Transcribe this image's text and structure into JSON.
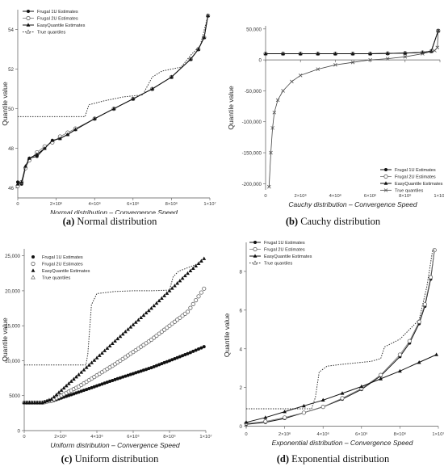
{
  "chart_data": [
    {
      "type": "line",
      "id": "a",
      "ylabel": "Quantile value",
      "xlabel": "Normal distribution –  Convergence Speed",
      "caption_letter": "(a)",
      "caption_text": "Normal distribution",
      "xlim": [
        0,
        10000000
      ],
      "ylim": [
        45.5,
        55
      ],
      "y_ticks": [
        46,
        48,
        50,
        52,
        54
      ],
      "x_ticks": [
        0,
        2000000,
        4000000,
        6000000,
        8000000,
        10000000
      ],
      "x_tick_labels": [
        "0",
        "2×10⁶",
        "4×10⁶",
        "6×10⁶",
        "8×10⁶",
        "1×10⁷"
      ],
      "y_tick_labels": [
        "46",
        "48",
        "50",
        "52",
        "54"
      ],
      "legend": "top-left",
      "grid": false,
      "series": [
        {
          "name": "Frugal 1U Estimates",
          "style": "filled-circle",
          "x": [
            0,
            200000,
            400000,
            600000,
            1000000,
            1400000,
            1800000,
            2200000,
            2600000,
            3000000,
            4000000,
            5000000,
            6000000,
            7000000,
            8000000,
            9000000,
            9400000,
            9700000,
            9900000
          ],
          "y": [
            46.3,
            46.2,
            47.0,
            47.5,
            47.6,
            48.0,
            48.4,
            48.5,
            48.7,
            48.95,
            49.5,
            50.0,
            50.5,
            51.0,
            51.6,
            52.5,
            53.0,
            53.6,
            54.7
          ]
        },
        {
          "name": "Frugal 2U Estimates",
          "style": "open-circle",
          "x": [
            0,
            200000,
            400000,
            600000,
            1000000,
            1400000,
            1800000,
            2200000,
            2600000,
            3000000,
            4000000,
            5000000,
            6000000,
            7000000,
            8000000,
            9000000,
            9400000,
            9700000,
            9900000
          ],
          "y": [
            46.1,
            46.3,
            47.0,
            47.4,
            47.8,
            48.1,
            48.3,
            48.6,
            48.8,
            49.0,
            49.5,
            50.0,
            50.5,
            51.0,
            51.6,
            52.5,
            53.0,
            53.6,
            54.7
          ]
        },
        {
          "name": "EasyQuantile Estimates",
          "style": "filled-triangle",
          "x": [
            0,
            200000,
            400000,
            600000,
            1000000,
            1400000,
            1800000,
            2200000,
            2600000,
            3000000,
            4000000,
            5000000,
            6000000,
            7000000,
            8000000,
            9000000,
            9400000,
            9700000,
            9900000
          ],
          "y": [
            46.2,
            46.3,
            47.1,
            47.5,
            47.7,
            48.0,
            48.4,
            48.5,
            48.7,
            48.95,
            49.5,
            50.0,
            50.5,
            51.0,
            51.6,
            52.5,
            53.0,
            53.6,
            54.7
          ]
        },
        {
          "name": "True quantiles",
          "style": "dotted",
          "x": [
            0,
            3500000,
            3700000,
            4500000,
            5500000,
            6500000,
            7000000,
            7500000,
            8500000,
            9000000,
            9500000,
            9900000
          ],
          "y": [
            49.6,
            49.6,
            50.2,
            50.4,
            50.6,
            50.7,
            51.6,
            51.9,
            52.1,
            52.7,
            53.2,
            54.7
          ]
        }
      ]
    },
    {
      "type": "line",
      "id": "b",
      "ylabel": "Quantile value",
      "xlabel": "Cauchy distribution –  Convergence Speed",
      "caption_letter": "(b)",
      "caption_text": "Cauchy distribution",
      "xlim": [
        0,
        10000000
      ],
      "ylim": [
        -210000,
        55000
      ],
      "y_ticks": [
        -200000,
        -150000,
        -100000,
        -50000,
        0,
        50000
      ],
      "y_tick_labels": [
        "-200,000",
        "-150,000",
        "-100,000",
        "-50,000",
        "0",
        "50,000"
      ],
      "x_ticks": [
        0,
        2000000,
        4000000,
        6000000,
        8000000,
        10000000
      ],
      "x_tick_labels": [
        "0",
        "2×10⁶",
        "4×10⁶",
        "6×10⁶",
        "8×10⁶",
        "1×10⁷"
      ],
      "legend": "bottom-right",
      "grid": false,
      "series": [
        {
          "name": "Frugal 1U Estimates",
          "style": "filled-circle",
          "x": [
            0,
            1000000,
            2000000,
            3000000,
            4000000,
            5000000,
            6000000,
            7000000,
            8000000,
            9000000,
            9500000,
            9900000
          ],
          "y": [
            10000,
            10000,
            10000,
            10000,
            10000,
            10000,
            10000,
            10500,
            11000,
            12000,
            14000,
            47000
          ]
        },
        {
          "name": "Frugal 2U Estimates",
          "style": "open-circle",
          "x": [
            0,
            1000000,
            2000000,
            3000000,
            4000000,
            5000000,
            6000000,
            7000000,
            8000000,
            9000000,
            9500000,
            9900000
          ],
          "y": [
            10000,
            10000,
            10000,
            10000,
            10000,
            10000,
            10000,
            10500,
            11000,
            12000,
            14000,
            47000
          ]
        },
        {
          "name": "EasyQuantile Estimates",
          "style": "filled-triangle",
          "x": [
            0,
            1000000,
            2000000,
            3000000,
            4000000,
            5000000,
            6000000,
            7000000,
            8000000,
            9000000,
            9500000,
            9900000
          ],
          "y": [
            10000,
            10000,
            10000,
            10000,
            10000,
            10000,
            10000,
            10500,
            11000,
            12000,
            14000,
            47000
          ]
        },
        {
          "name": "True quantiles",
          "style": "line-cross",
          "x": [
            200000,
            300000,
            400000,
            500000,
            700000,
            1000000,
            1500000,
            2000000,
            3000000,
            4000000,
            5000000,
            6000000,
            7000000,
            8000000,
            9000000,
            9700000,
            9850000,
            9900000
          ],
          "y": [
            -205000,
            -150000,
            -110000,
            -85000,
            -65000,
            -50000,
            -35000,
            -25000,
            -15000,
            -8000,
            -4000,
            0,
            2000,
            5000,
            10000,
            15000,
            20000,
            47000
          ]
        }
      ]
    },
    {
      "type": "scatter",
      "id": "c",
      "ylabel": "Quantile value",
      "xlabel": "Uniform distribution –  Convergence Speed",
      "caption_letter": "(c)",
      "caption_text": "Uniform distribution",
      "xlim": [
        0,
        10000000
      ],
      "ylim": [
        0,
        26000
      ],
      "y_ticks": [
        0,
        5000,
        10000,
        15000,
        20000,
        25000
      ],
      "y_tick_labels": [
        "0",
        "5000",
        "10,000",
        "15,000",
        "20,000",
        "25,000"
      ],
      "x_ticks": [
        0,
        2000000,
        4000000,
        6000000,
        8000000,
        10000000
      ],
      "x_tick_labels": [
        "0",
        "2×10⁶",
        "4×10⁶",
        "6×10⁶",
        "8×10⁶",
        "1×10⁷"
      ],
      "legend": "top-left",
      "grid": false,
      "series": [
        {
          "name": "Frugal 1U Estimates",
          "style": "filled-circle",
          "x": [
            0,
            1000000,
            1500000,
            3000000,
            5000000,
            7000000,
            9000000,
            9900000
          ],
          "y": [
            4000,
            4000,
            4200,
            5500,
            7300,
            9000,
            11000,
            12000
          ]
        },
        {
          "name": "Frugal 2U Estimates",
          "style": "open-circle",
          "x": [
            0,
            1000000,
            1500000,
            3000000,
            5000000,
            7000000,
            9000000,
            9900000
          ],
          "y": [
            4000,
            4000,
            4300,
            6300,
            9500,
            13000,
            17000,
            20300
          ]
        },
        {
          "name": "EasyQuantile Estimates",
          "style": "filled-triangle",
          "x": [
            0,
            1000000,
            1500000,
            3000000,
            5000000,
            7000000,
            9000000,
            9900000
          ],
          "y": [
            4000,
            4000,
            4500,
            8000,
            12800,
            17500,
            22500,
            24600
          ]
        },
        {
          "name": "True quantiles",
          "style": "dotted",
          "x": [
            0,
            3400000,
            3500000,
            3700000,
            4000000,
            5000000,
            6000000,
            7000000,
            8000000,
            8200000,
            8500000,
            9000000,
            9500000,
            9900000
          ],
          "y": [
            9400,
            9400,
            11000,
            18000,
            19600,
            19900,
            20000,
            20000,
            20100,
            22000,
            22800,
            23300,
            23800,
            24600
          ]
        }
      ]
    },
    {
      "type": "line",
      "id": "d",
      "ylabel": "Quantile value",
      "xlabel": "Exponential distribution –  Convergence Speed",
      "caption_letter": "(d)",
      "caption_text": "Exponential distribution",
      "xlim": [
        0,
        10000000
      ],
      "ylim": [
        -0.1,
        9.5
      ],
      "y_ticks": [
        0,
        2,
        4,
        6,
        8
      ],
      "y_tick_labels": [
        "0",
        "2",
        "4",
        "6",
        "8"
      ],
      "x_ticks": [
        0,
        2000000,
        4000000,
        6000000,
        8000000,
        10000000
      ],
      "x_tick_labels": [
        "0",
        "2×10⁶",
        "4×10⁶",
        "6×10⁶",
        "8×10⁶",
        "1×10⁷"
      ],
      "legend": "top-left",
      "grid": false,
      "series": [
        {
          "name": "Frugal 1U Estimates",
          "style": "filled-circle",
          "x": [
            0,
            1000000,
            2000000,
            3000000,
            4000000,
            5000000,
            6000000,
            7000000,
            8000000,
            8500000,
            9000000,
            9300000,
            9600000,
            9800000
          ],
          "y": [
            0.1,
            0.2,
            0.4,
            0.7,
            1.0,
            1.4,
            1.9,
            2.6,
            3.6,
            4.3,
            5.3,
            6.2,
            7.6,
            9.1
          ]
        },
        {
          "name": "Frugal 2U Estimates",
          "style": "open-circle",
          "x": [
            0,
            1000000,
            2000000,
            3000000,
            4000000,
            5000000,
            6000000,
            7000000,
            8000000,
            8500000,
            9000000,
            9300000,
            9600000,
            9800000
          ],
          "y": [
            0.15,
            0.25,
            0.45,
            0.7,
            1.0,
            1.45,
            1.95,
            2.65,
            3.7,
            4.4,
            5.4,
            6.3,
            7.7,
            9.1
          ]
        },
        {
          "name": "EasyQuantile Estimates",
          "style": "filled-triangle",
          "x": [
            0,
            1000000,
            2000000,
            3000000,
            4000000,
            5000000,
            6000000,
            7000000,
            8000000,
            9000000,
            9900000
          ],
          "y": [
            0.2,
            0.45,
            0.75,
            1.05,
            1.35,
            1.7,
            2.05,
            2.45,
            2.85,
            3.3,
            3.7
          ]
        },
        {
          "name": "True quantiles",
          "style": "dotted",
          "x": [
            0,
            3400000,
            3600000,
            3800000,
            4200000,
            5000000,
            6000000,
            6500000,
            7000000,
            7200000,
            7600000,
            8000000,
            8500000,
            9000000,
            9400000,
            9700000,
            9800000
          ],
          "y": [
            0.9,
            0.9,
            1.5,
            2.8,
            3.1,
            3.2,
            3.3,
            3.35,
            3.5,
            4.1,
            4.3,
            4.5,
            5.0,
            5.5,
            7.2,
            9.1,
            9.1
          ]
        }
      ]
    }
  ]
}
